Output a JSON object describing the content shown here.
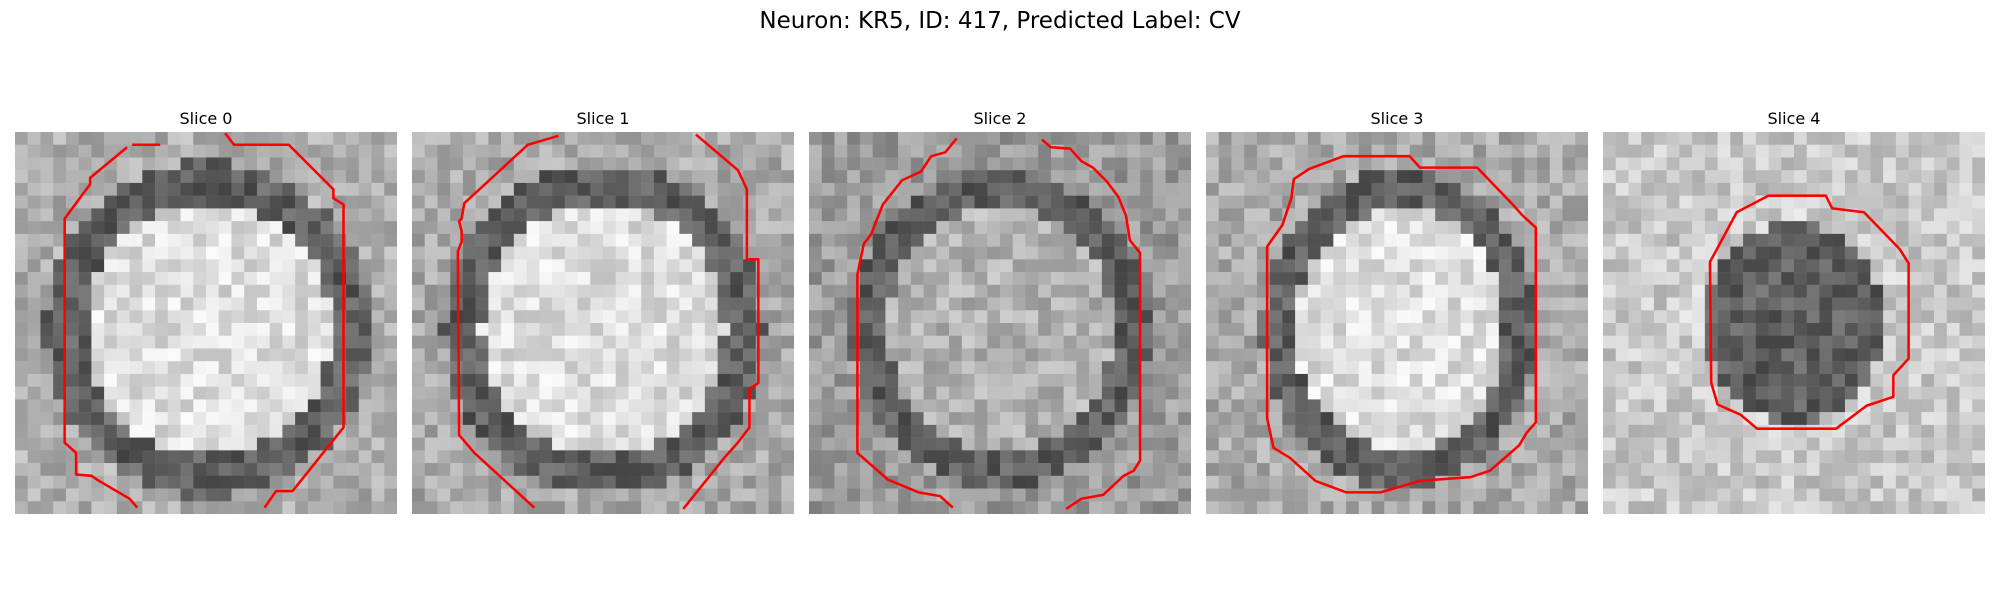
{
  "figure": {
    "suptitle": "Neuron: KR5, ID: 417, Predicted Label: CV",
    "contour_color": "#ff0000"
  },
  "panels": [
    {
      "title": "Slice 0",
      "interior": "bright",
      "rim": "dark",
      "contour_shape": "large-octagon-clipped"
    },
    {
      "title": "Slice 1",
      "interior": "bright",
      "rim": "dark",
      "contour_shape": "large-octagon-clipped"
    },
    {
      "title": "Slice 2",
      "interior": "medium",
      "rim": "dark",
      "contour_shape": "large-octagon-clipped"
    },
    {
      "title": "Slice 3",
      "interior": "bright",
      "rim": "dark",
      "contour_shape": "octagon"
    },
    {
      "title": "Slice 4",
      "interior": "dark",
      "rim": "light",
      "contour_shape": "small-octagon"
    }
  ]
}
